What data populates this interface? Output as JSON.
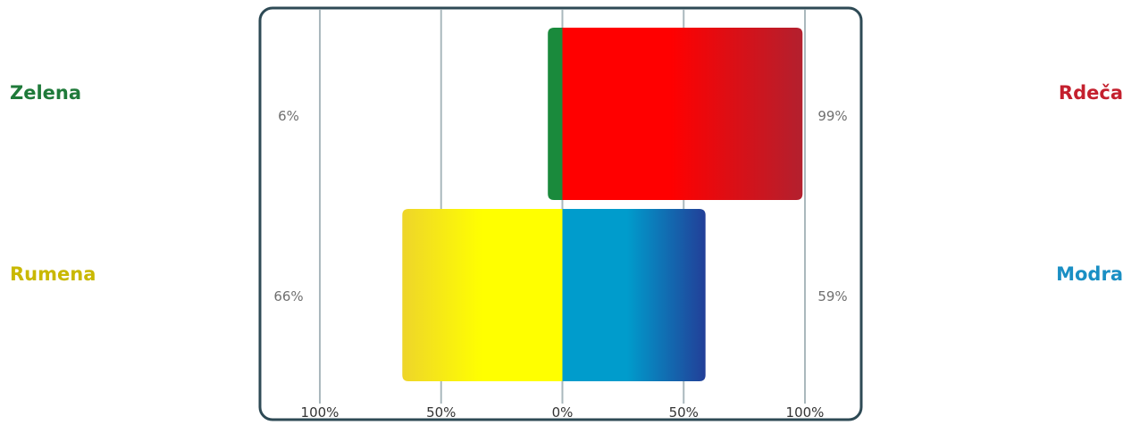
{
  "chart_data": {
    "type": "bar",
    "orientation": "diverging-horizontal",
    "xlim": [
      -100,
      100
    ],
    "x_ticks": [
      "100%",
      "50%",
      "0%",
      "50%",
      "100%"
    ],
    "grid": true,
    "rows": [
      {
        "left": {
          "name": "Zelena",
          "value": 6,
          "label": "6%",
          "color": "#1a8a3c",
          "label_color": "#1f7a3a"
        },
        "right": {
          "name": "Rdeča",
          "value": 99,
          "label": "99%",
          "color": "#ff0000",
          "color_end": "#b3202e",
          "label_color": "#c4202e"
        }
      },
      {
        "left": {
          "name": "Rumena",
          "value": 66,
          "label": "66%",
          "color": "#ffff00",
          "color_end": "#eed52a",
          "label_color": "#c9b800"
        },
        "right": {
          "name": "Modra",
          "value": 59,
          "label": "59%",
          "color": "#009ccc",
          "color_end": "#223f98",
          "label_color": "#1a8fc4"
        }
      }
    ],
    "frame_color": "#2e4a55",
    "grid_color": "#aab8bd"
  }
}
